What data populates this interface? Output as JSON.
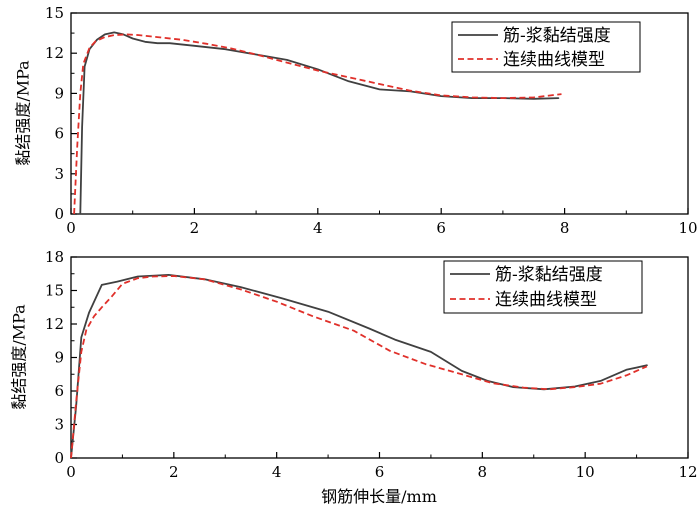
{
  "chart_data": [
    {
      "type": "line",
      "xlabel": "",
      "ylabel": "黏结强度/MPa",
      "xlim": [
        0,
        10
      ],
      "ylim": [
        0,
        15
      ],
      "xticks": [
        "0",
        "2",
        "4",
        "6",
        "8",
        "10"
      ],
      "yticks": [
        "0",
        "3",
        "6",
        "9",
        "12",
        "15"
      ],
      "grid": false,
      "legend_position": "top-right",
      "series": [
        {
          "name": "筋-浆黏结强度",
          "color": "#404040",
          "dash": "solid",
          "x": [
            0.15,
            0.18,
            0.22,
            0.3,
            0.42,
            0.55,
            0.7,
            0.85,
            1.0,
            1.2,
            1.4,
            1.6,
            2.0,
            2.5,
            3.0,
            3.5,
            4.0,
            4.5,
            5.0,
            5.5,
            6.0,
            6.5,
            7.0,
            7.5,
            7.9
          ],
          "y": [
            0,
            6.5,
            11.0,
            12.3,
            13.0,
            13.4,
            13.55,
            13.4,
            13.1,
            12.85,
            12.75,
            12.75,
            12.55,
            12.3,
            11.9,
            11.5,
            10.8,
            9.9,
            9.3,
            9.15,
            8.8,
            8.65,
            8.65,
            8.6,
            8.65
          ]
        },
        {
          "name": "连续曲线模型",
          "color": "#e0302a",
          "dash": "dashed",
          "x": [
            0.05,
            0.1,
            0.15,
            0.2,
            0.3,
            0.4,
            0.55,
            0.7,
            0.9,
            1.1,
            1.4,
            1.8,
            2.2,
            2.6,
            3.0,
            3.5,
            4.0,
            4.5,
            5.0,
            5.5,
            6.0,
            6.5,
            7.0,
            7.5,
            7.95
          ],
          "y": [
            0,
            5.0,
            9.0,
            11.2,
            12.4,
            12.9,
            13.2,
            13.35,
            13.4,
            13.35,
            13.2,
            13.0,
            12.7,
            12.35,
            11.9,
            11.3,
            10.7,
            10.2,
            9.7,
            9.2,
            8.85,
            8.7,
            8.65,
            8.7,
            8.95
          ]
        }
      ]
    },
    {
      "type": "line",
      "xlabel": "钢筋伸长量/mm",
      "ylabel": "黏结强度/MPa",
      "xlim": [
        0,
        12
      ],
      "ylim": [
        0,
        18
      ],
      "xticks": [
        "0",
        "2",
        "4",
        "6",
        "8",
        "10",
        "12"
      ],
      "yticks": [
        "0",
        "3",
        "6",
        "9",
        "12",
        "15",
        "18"
      ],
      "grid": false,
      "legend_position": "top-right",
      "series": [
        {
          "name": "筋-浆黏结强度",
          "color": "#404040",
          "dash": "solid",
          "x": [
            0,
            0.1,
            0.2,
            0.35,
            0.6,
            0.9,
            1.3,
            1.9,
            2.6,
            3.3,
            4.1,
            5.0,
            5.8,
            6.3,
            7.0,
            7.6,
            8.1,
            8.6,
            9.2,
            9.8,
            10.3,
            10.8,
            11.2
          ],
          "y": [
            0,
            4.6,
            10.8,
            13.0,
            15.5,
            15.8,
            16.25,
            16.4,
            16.0,
            15.3,
            14.3,
            13.1,
            11.6,
            10.6,
            9.5,
            7.8,
            6.9,
            6.35,
            6.15,
            6.4,
            6.9,
            7.9,
            8.3
          ]
        },
        {
          "name": "连续曲线模型",
          "color": "#e0302a",
          "dash": "dashed",
          "x": [
            0,
            0.1,
            0.2,
            0.3,
            0.45,
            0.6,
            0.8,
            1.0,
            1.3,
            1.6,
            2.0,
            2.6,
            3.3,
            4.0,
            4.7,
            5.5,
            6.2,
            6.9,
            7.6,
            8.2,
            8.8,
            9.3,
            9.8,
            10.3,
            10.8,
            11.2
          ],
          "y": [
            0,
            5.0,
            9.5,
            11.5,
            12.7,
            13.5,
            14.5,
            15.6,
            16.1,
            16.25,
            16.3,
            16.0,
            15.1,
            14.0,
            12.7,
            11.4,
            9.6,
            8.4,
            7.5,
            6.7,
            6.3,
            6.15,
            6.35,
            6.65,
            7.4,
            8.2
          ]
        }
      ]
    }
  ]
}
